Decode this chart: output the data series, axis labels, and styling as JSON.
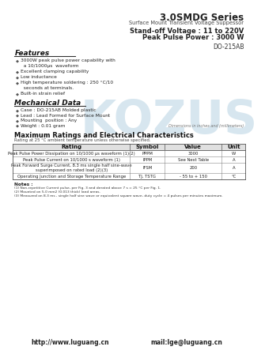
{
  "title": "3.0SMDG Series",
  "subtitle": "Surface Mount Transient Voltage Suppessor",
  "standoff": "Stand-off Voltage : 11 to 220V",
  "peak_pulse": "Peak Pulse Power : 3000 W",
  "package": "DO-215AB",
  "features_title": "Features",
  "features": [
    "3000W peak pulse power capability with\n  a 10/1000μs  waveform",
    "Excellent clamping capability",
    "Low inductance",
    "High temperature soldering : 250 °C/10\n  seconds at terminals.",
    "Built-in strain relief"
  ],
  "mechanical_title": "Mechanical Data",
  "mechanical": [
    "Case : DO-215AB Molded plastic",
    "Lead : Lead Formed for Surface Mount",
    "Mounting  position : Any",
    "Weight : 0.01 gram"
  ],
  "dim_note": "Dimensions in inches and (millimeters)",
  "table_title": "Maximum Ratings and Electrical Characteristics",
  "table_subtitle": "Rating at 25 °C ambient temperature unless otherwise specified.",
  "table_headers": [
    "Rating",
    "Symbol",
    "Value",
    "Unit"
  ],
  "table_rows": [
    [
      "Peak Pulse Power Dissipation on 10/1000 μs waveform (1)(2)",
      "PPPM",
      "3000",
      "W"
    ],
    [
      "Peak Pulse Current on 10/1000 s waveform (1)",
      "IPPM",
      "See Next Table",
      "A"
    ],
    [
      "Peak Forward Surge Current, 8.3 ms single half sine-wave\nsuperimposed on rated load (2)(3)",
      "IFSM",
      "200",
      "A"
    ],
    [
      "Operating Junction and Storage Temperature Range",
      "TJ, TSTG",
      "- 55 to + 150",
      "°C"
    ]
  ],
  "notes_title": "Notes :",
  "notes": [
    "(1) Non-repetitive Current pulse, per Fig. 3 and derated above 7 s = 25 °C per Fig. 1.",
    "(2) Mounted on 5.0 mm2 (0.013 thick) land areas.",
    "(3) Measured on 8.3 ms , single half sine wave or equivalent square wave, duty cycle = 4 pulses per minutes maximum."
  ],
  "website": "http://www.luguang.cn",
  "email": "mail:lge@luguang.cn",
  "watermark": "KOZUS",
  "bg_color": "#ffffff",
  "text_color": "#000000",
  "header_bg": "#e0e0e0",
  "table_line_color": "#555555"
}
